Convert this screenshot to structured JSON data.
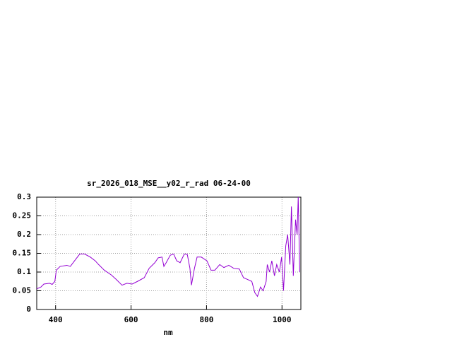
{
  "chart_data": {
    "type": "line",
    "title": "sr_2026_018_MSE__y02_r_rad 06-24-00",
    "x_label": "nm",
    "x": [
      350,
      361,
      369,
      384,
      391,
      398,
      402,
      412,
      430,
      439,
      454,
      464,
      477,
      492,
      505,
      514,
      529,
      548,
      561,
      576,
      589,
      603,
      617,
      635,
      648,
      663,
      672,
      682,
      687,
      693,
      704,
      713,
      721,
      730,
      741,
      749,
      756,
      760,
      768,
      775,
      786,
      801,
      812,
      822,
      835,
      846,
      859,
      872,
      887,
      898,
      909,
      920,
      928,
      935,
      943,
      950,
      958,
      961,
      967,
      973,
      980,
      986,
      993,
      999,
      1004,
      1010,
      1015,
      1021,
      1025,
      1030,
      1036,
      1040,
      1043,
      1047
    ],
    "series": [
      {
        "name": "sr_2026_018_MSE__y02_r_rad",
        "color": "#9400d3",
        "values": [
          0.055,
          0.06,
          0.068,
          0.07,
          0.067,
          0.075,
          0.105,
          0.115,
          0.118,
          0.115,
          0.135,
          0.148,
          0.148,
          0.14,
          0.13,
          0.12,
          0.105,
          0.092,
          0.08,
          0.065,
          0.07,
          0.068,
          0.075,
          0.085,
          0.11,
          0.125,
          0.138,
          0.14,
          0.115,
          0.125,
          0.145,
          0.148,
          0.13,
          0.125,
          0.148,
          0.147,
          0.11,
          0.065,
          0.11,
          0.14,
          0.14,
          0.13,
          0.105,
          0.105,
          0.12,
          0.112,
          0.118,
          0.11,
          0.108,
          0.085,
          0.08,
          0.075,
          0.045,
          0.035,
          0.06,
          0.05,
          0.075,
          0.12,
          0.1,
          0.13,
          0.09,
          0.12,
          0.1,
          0.14,
          0.05,
          0.17,
          0.2,
          0.12,
          0.275,
          0.09,
          0.24,
          0.2,
          0.3,
          0.1
        ]
      }
    ],
    "xlim": [
      350,
      1050
    ],
    "xticks": [
      400,
      600,
      800,
      1000
    ],
    "ylim": [
      0,
      0.3
    ],
    "yticks": [
      0,
      0.05,
      0.1,
      0.15,
      0.2,
      0.25,
      0.3
    ],
    "grid": true
  }
}
